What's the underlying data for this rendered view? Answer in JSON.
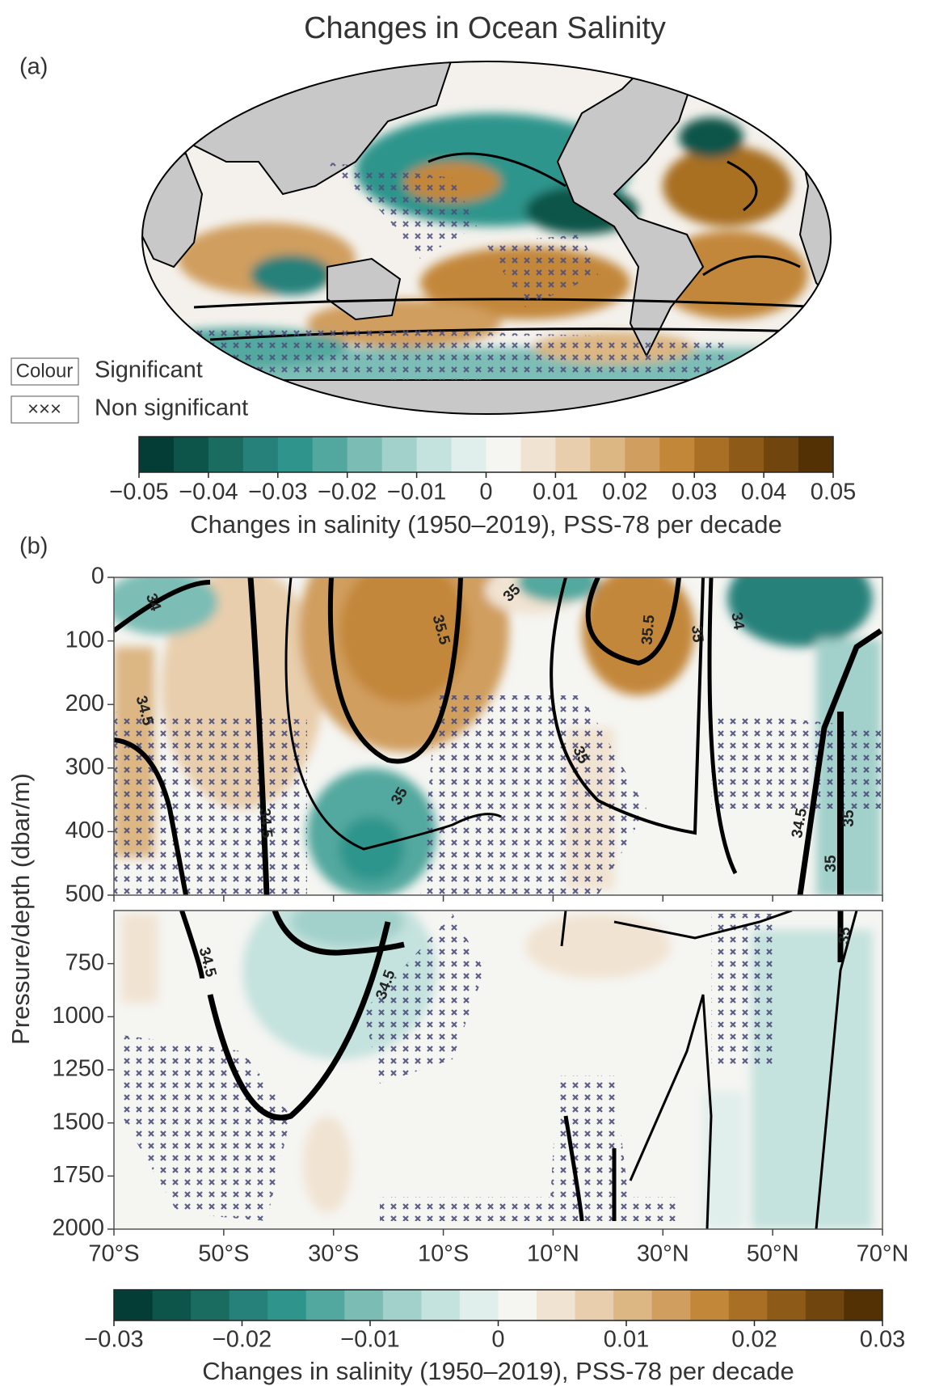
{
  "chart_data": [
    {
      "type": "map",
      "title": "Changes in Ocean Salinity",
      "panel_label": "(a)",
      "legend": [
        {
          "symbol": "Colour",
          "label": "Significant"
        },
        {
          "symbol": "×××",
          "label": "Non significant"
        }
      ],
      "colorbar": {
        "label": "Changes in salinity (1950–2019), PSS-78 per decade",
        "clim": [
          -0.05,
          0.05
        ],
        "ticks": [
          {
            "value": -0.05,
            "label": "−0.05"
          },
          {
            "value": -0.04,
            "label": "−0.04"
          },
          {
            "value": -0.03,
            "label": "−0.03"
          },
          {
            "value": -0.02,
            "label": "−0.02"
          },
          {
            "value": -0.01,
            "label": "−0.01"
          },
          0,
          0.01,
          0.02,
          0.03,
          0.04,
          0.05
        ],
        "colors": [
          "#033d35",
          "#0d544a",
          "#1a6b60",
          "#25817a",
          "#2f958c",
          "#52a89f",
          "#7bbdb5",
          "#a2d0ca",
          "#c4e2de",
          "#e0eeec",
          "#f5f5f2",
          "#f1e3d2",
          "#e8ceac",
          "#dcb683",
          "#d09e5e",
          "#c3873a",
          "#a96f24",
          "#8d5a17",
          "#71450e",
          "#543005"
        ]
      }
    },
    {
      "type": "section",
      "panel_label": "(b)",
      "ylabel": "Pressure/depth (dbar/m)",
      "xlim": [
        -70,
        70
      ],
      "xticks": [
        {
          "value": -70,
          "label": "70°S"
        },
        {
          "value": -50,
          "label": "50°S"
        },
        {
          "value": -30,
          "label": "30°S"
        },
        {
          "value": -10,
          "label": "10°S"
        },
        {
          "value": 10,
          "label": "10°N"
        },
        {
          "value": 30,
          "label": "30°N"
        },
        {
          "value": 50,
          "label": "50°N"
        },
        {
          "value": 70,
          "label": "70°N"
        }
      ],
      "ylim": [
        0,
        500
      ],
      "yticks": [
        0,
        100,
        200,
        300,
        400,
        500
      ],
      "ylim_lower": [
        500,
        2000
      ],
      "yticks_lower": [
        750,
        1000,
        1250,
        1500,
        1750,
        2000
      ],
      "contour_labels": [
        34,
        34.5,
        34.5,
        35,
        35.5,
        35,
        35.5,
        35,
        34,
        35,
        34.5,
        35,
        35,
        34.5,
        34.5,
        35
      ],
      "colorbar": {
        "label": "Changes in salinity (1950–2019), PSS-78 per decade",
        "clim": [
          -0.03,
          0.03
        ],
        "ticks": [
          {
            "value": -0.03,
            "label": "−0.03"
          },
          {
            "value": -0.02,
            "label": "−0.02"
          },
          {
            "value": -0.01,
            "label": "−0.01"
          },
          0,
          0.01,
          0.02,
          0.03
        ],
        "colors": [
          "#033d35",
          "#0d544a",
          "#1a6b60",
          "#25817a",
          "#2f958c",
          "#52a89f",
          "#7bbdb5",
          "#a2d0ca",
          "#c4e2de",
          "#e0eeec",
          "#f5f5f2",
          "#f1e3d2",
          "#e8ceac",
          "#dcb683",
          "#d09e5e",
          "#c3873a",
          "#a96f24",
          "#8d5a17",
          "#71450e",
          "#543005"
        ]
      }
    }
  ]
}
